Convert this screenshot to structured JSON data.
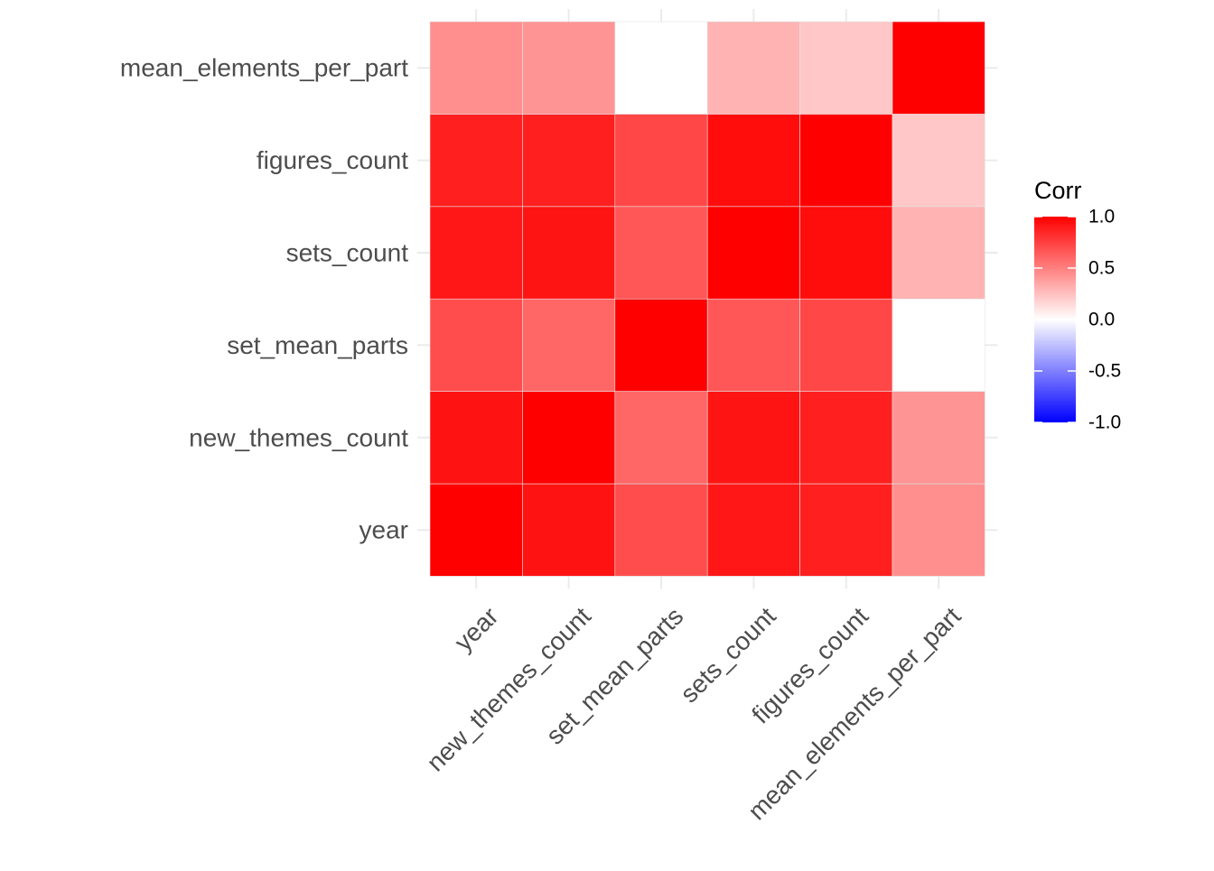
{
  "chart_data": {
    "type": "heatmap",
    "variables": [
      "year",
      "new_themes_count",
      "set_mean_parts",
      "sets_count",
      "figures_count",
      "mean_elements_per_part"
    ],
    "matrix": [
      [
        1.0,
        0.93,
        0.7,
        0.91,
        0.88,
        0.44
      ],
      [
        0.93,
        1.0,
        0.6,
        0.92,
        0.88,
        0.42
      ],
      [
        0.7,
        0.6,
        1.0,
        0.66,
        0.72,
        0.0
      ],
      [
        0.91,
        0.92,
        0.66,
        1.0,
        0.95,
        0.3
      ],
      [
        0.88,
        0.88,
        0.72,
        0.95,
        1.0,
        0.22
      ],
      [
        0.44,
        0.42,
        0.0,
        0.3,
        0.22,
        1.0
      ]
    ],
    "xlabel": "",
    "ylabel": "",
    "legend": {
      "title": "Corr",
      "placement": "right",
      "range": [
        -1,
        1
      ],
      "breaks": [
        1.0,
        0.5,
        0.0,
        -0.5,
        -1.0
      ],
      "break_labels": [
        "1.0",
        "0.5",
        "0.0",
        "-0.5",
        "-1.0"
      ]
    },
    "colors": {
      "low": "#0000ff",
      "mid": "#ffffff",
      "high": "#ff0000"
    },
    "grid": true
  }
}
